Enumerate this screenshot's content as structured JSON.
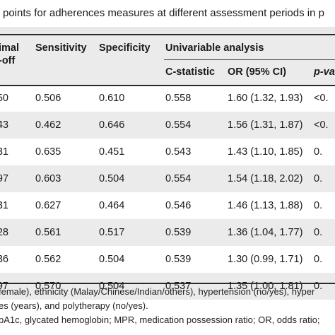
{
  "caption": "points for adherences measures at different assessment periods in p",
  "header": {
    "col_cutoff_line1": "imal",
    "col_cutoff_line2": "-off",
    "col_sensitivity": "Sensitivity",
    "col_specificity": "Specificity",
    "group_univariable": "Univariable analysis",
    "col_cstat": "C-statistic",
    "col_or": "OR (95% CI)",
    "col_p": "p-va"
  },
  "rows": [
    {
      "cutoff": "50",
      "sens": "0.506",
      "spec": "0.610",
      "cstat": "0.558",
      "or": "1.60 (1.32, 1.93)",
      "p": "<0."
    },
    {
      "cutoff": "43",
      "sens": "0.462",
      "spec": "0.646",
      "cstat": "0.554",
      "or": "1.56 (1.31, 1.87)",
      "p": "<0."
    },
    {
      "cutoff": "31",
      "sens": "0.635",
      "spec": "0.451",
      "cstat": "0.543",
      "or": "1.43 (1.10, 1.85)",
      "p": "0."
    },
    {
      "cutoff": "97",
      "sens": "0.603",
      "spec": "0.504",
      "cstat": "0.554",
      "or": "1.54 (1.18, 2.02)",
      "p": "0."
    },
    {
      "cutoff": "31",
      "sens": "0.627",
      "spec": "0.464",
      "cstat": "0.546",
      "or": "1.46 (1.13, 1.88)",
      "p": "0."
    },
    {
      "cutoff": "28",
      "sens": "0.561",
      "spec": "0.517",
      "cstat": "0.539",
      "or": "1.36 (1.04, 1.77)",
      "p": "0."
    },
    {
      "cutoff": "36",
      "sens": "0.562",
      "spec": "0.504",
      "cstat": "0.539",
      "or": "1.30 (0.99, 1.71)",
      "p": "0."
    },
    {
      "cutoff": "97",
      "sens": "0.570",
      "spec": "0.504",
      "cstat": "0.537",
      "or": "1.35 (1.00, 1.81)",
      "p": "0."
    }
  ],
  "footnote": {
    "line1": "female), ethnicity (Malay/Chinese/Indian/others), hypertension (no/yes), hyper",
    "line2": "es (years), and polytherapy (no/yes).",
    "line3": "bA1c, glycated hemoglobin; MPR, medication possession ratio; OR, odds ratio;"
  }
}
